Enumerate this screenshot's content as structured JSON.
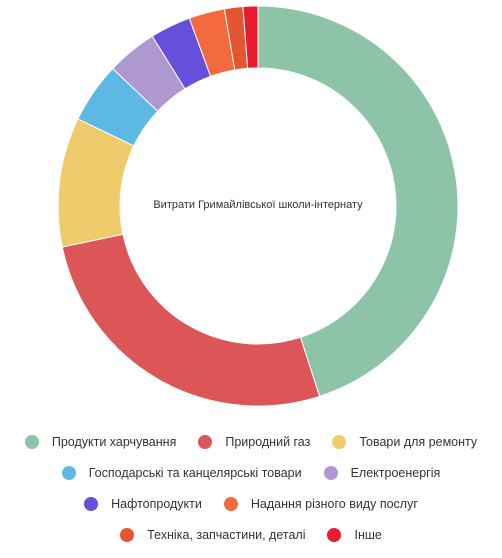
{
  "chart_data": {
    "type": "pie",
    "title": "Витрати Гримайлівської школи-інтернату",
    "categories": [
      "Продукти харчування",
      "Природний газ",
      "Товари для ремонту",
      "Господарські та канцелярські товари",
      "Електроенергія",
      "Нафтопродукти",
      "Надання різного виду послуг",
      "Техніка, запчастини, деталі",
      "Інше"
    ],
    "values": [
      45.2,
      26.8,
      10.5,
      4.9,
      4.1,
      3.3,
      2.9,
      1.5,
      1.2
    ],
    "colors": [
      "#8dc3a7",
      "#dd5657",
      "#efcb6b",
      "#5db8e4",
      "#ae98cf",
      "#6550dc",
      "#f26a3d",
      "#e35630",
      "#e81c2e"
    ],
    "hole": "center",
    "legend_position": "bottom"
  }
}
